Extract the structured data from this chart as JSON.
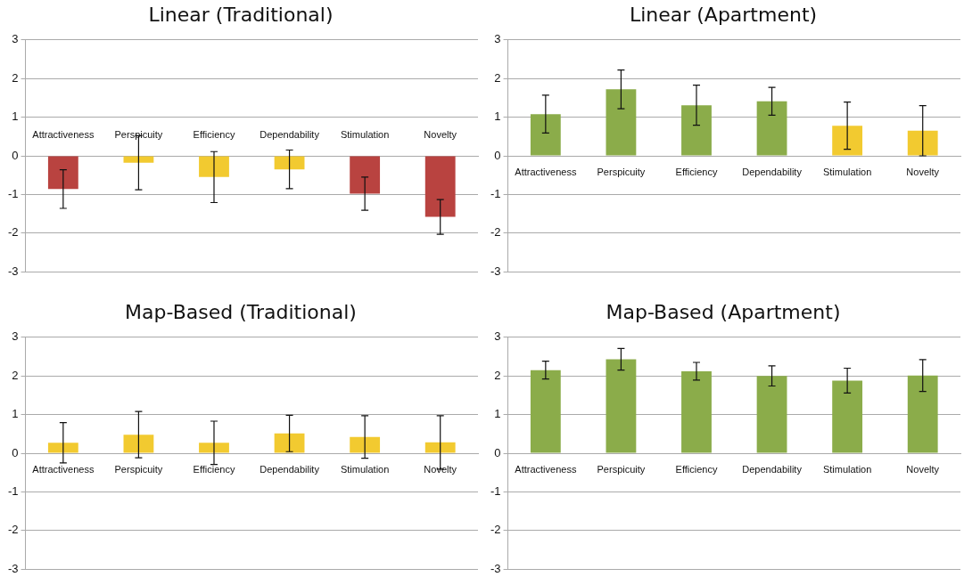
{
  "chart_data": [
    {
      "type": "bar",
      "title": "Linear (Traditional)",
      "categories": [
        "Attractiveness",
        "Perspicuity",
        "Efficiency",
        "Dependability",
        "Stimulation",
        "Novelty"
      ],
      "values": [
        -0.86,
        -0.18,
        -0.55,
        -0.35,
        -0.98,
        -1.58
      ],
      "colors": [
        "#b94340",
        "#f2ca30",
        "#f2ca30",
        "#f2ca30",
        "#b94340",
        "#b94340"
      ],
      "errors": [
        0.5,
        0.7,
        0.66,
        0.5,
        0.43,
        0.45
      ],
      "ylim": [
        -3,
        3
      ],
      "yticks": [
        -3,
        -2,
        -1,
        0,
        1,
        2,
        3
      ],
      "grid": "y"
    },
    {
      "type": "bar",
      "title": "Linear (Apartment)",
      "categories": [
        "Attractiveness",
        "Perspicuity",
        "Efficiency",
        "Dependability",
        "Stimulation",
        "Novelty"
      ],
      "values": [
        1.08,
        1.72,
        1.31,
        1.41,
        0.78,
        0.65
      ],
      "colors": [
        "#8bac4a",
        "#8bac4a",
        "#8bac4a",
        "#8bac4a",
        "#f2ca30",
        "#f2ca30"
      ],
      "errors": [
        0.49,
        0.5,
        0.52,
        0.36,
        0.61,
        0.65
      ],
      "ylim": [
        -3,
        3
      ],
      "yticks": [
        -3,
        -2,
        -1,
        0,
        1,
        2,
        3
      ],
      "grid": "y"
    },
    {
      "type": "bar",
      "title": "Map-Based (Traditional)",
      "categories": [
        "Attractiveness",
        "Perspicuity",
        "Efficiency",
        "Dependability",
        "Stimulation",
        "Novelty"
      ],
      "values": [
        0.27,
        0.48,
        0.27,
        0.51,
        0.42,
        0.28
      ],
      "colors": [
        "#f2ca30",
        "#f2ca30",
        "#f2ca30",
        "#f2ca30",
        "#f2ca30",
        "#f2ca30"
      ],
      "errors": [
        0.52,
        0.6,
        0.56,
        0.47,
        0.55,
        0.69
      ],
      "ylim": [
        -3,
        3
      ],
      "yticks": [
        -3,
        -2,
        -1,
        0,
        1,
        2,
        3
      ],
      "grid": "y"
    },
    {
      "type": "bar",
      "title": "Map-Based (Apartment)",
      "categories": [
        "Attractiveness",
        "Perspicuity",
        "Efficiency",
        "Dependability",
        "Stimulation",
        "Novelty"
      ],
      "values": [
        2.15,
        2.43,
        2.12,
        2.0,
        1.88,
        2.01
      ],
      "colors": [
        "#8bac4a",
        "#8bac4a",
        "#8bac4a",
        "#8bac4a",
        "#8bac4a",
        "#8bac4a"
      ],
      "errors": [
        0.23,
        0.28,
        0.23,
        0.26,
        0.32,
        0.41
      ],
      "ylim": [
        -3,
        3
      ],
      "yticks": [
        -3,
        -2,
        -1,
        0,
        1,
        2,
        3
      ],
      "grid": "y"
    }
  ]
}
